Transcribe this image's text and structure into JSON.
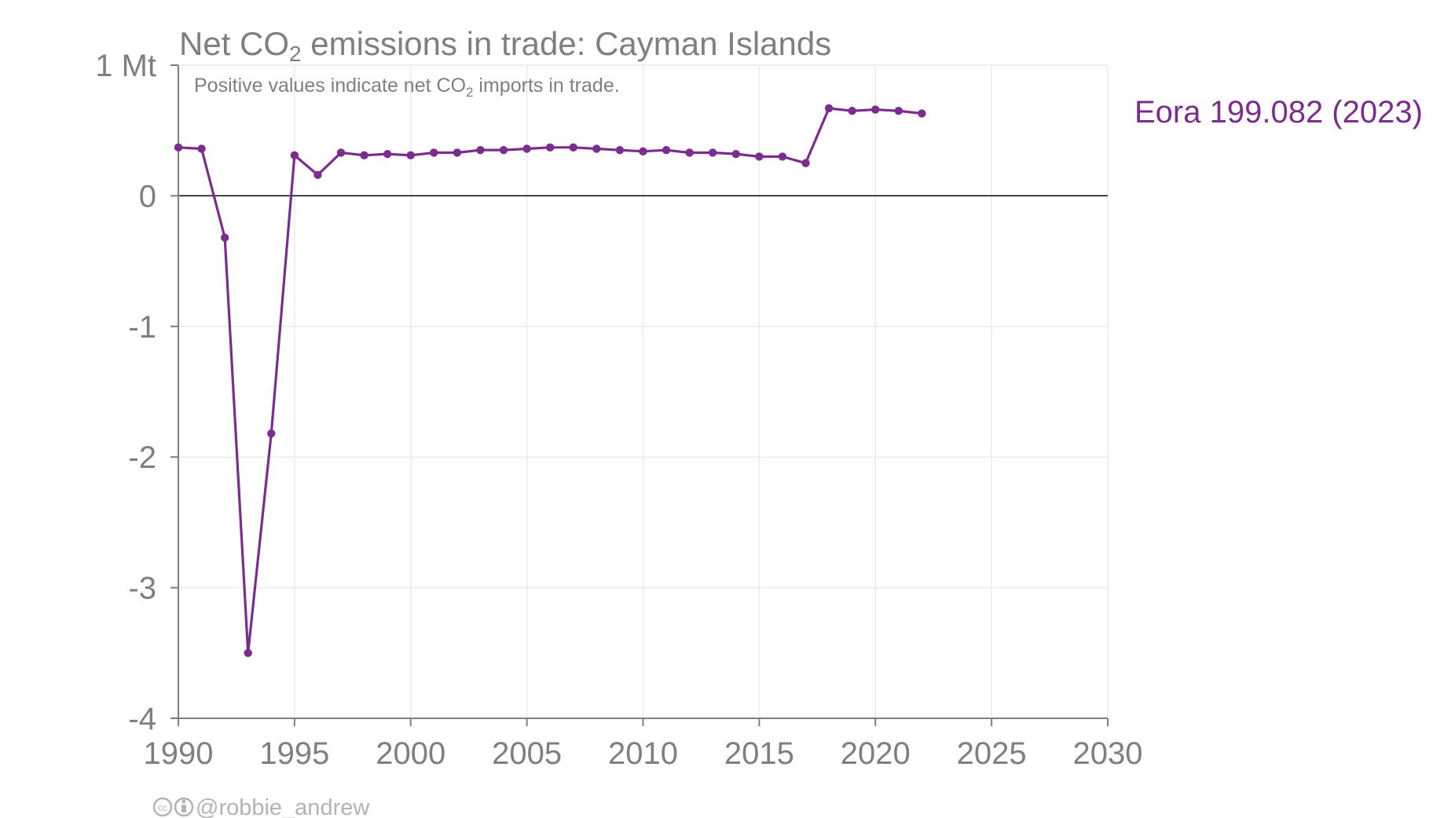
{
  "chart_data": {
    "type": "line",
    "title_prefix": "Net CO",
    "title_sub": "2",
    "title_suffix": " emissions in trade: Cayman Islands",
    "subtitle_prefix": "Positive values indicate net CO",
    "subtitle_sub": "2",
    "subtitle_suffix": " imports in trade.",
    "y_unit_label": "1 Mt",
    "xlim": [
      1990,
      2030
    ],
    "ylim": [
      -4,
      1
    ],
    "x_ticks": [
      "1990",
      "1995",
      "2000",
      "2005",
      "2010",
      "2015",
      "2020",
      "2025",
      "2030"
    ],
    "y_ticks": [
      {
        "value": 1,
        "label": "1 Mt"
      },
      {
        "value": 0,
        "label": "0"
      },
      {
        "value": -1,
        "label": "-1"
      },
      {
        "value": -2,
        "label": "-2"
      },
      {
        "value": -3,
        "label": "-3"
      },
      {
        "value": -4,
        "label": "-4"
      }
    ],
    "grid": true,
    "series": [
      {
        "name": "Eora",
        "end_label": "Eora 199.082 (2023)",
        "color": "#7b2d8e",
        "x": [
          1990,
          1991,
          1992,
          1993,
          1994,
          1995,
          1996,
          1997,
          1998,
          1999,
          2000,
          2001,
          2002,
          2003,
          2004,
          2005,
          2006,
          2007,
          2008,
          2009,
          2010,
          2011,
          2012,
          2013,
          2014,
          2015,
          2016,
          2017,
          2018,
          2019,
          2020,
          2021,
          2022
        ],
        "y": [
          0.37,
          0.36,
          -0.32,
          -3.5,
          -1.82,
          0.31,
          0.16,
          0.33,
          0.31,
          0.32,
          0.31,
          0.33,
          0.33,
          0.35,
          0.35,
          0.36,
          0.37,
          0.37,
          0.36,
          0.35,
          0.34,
          0.35,
          0.33,
          0.33,
          0.32,
          0.3,
          0.3,
          0.25,
          0.67,
          0.65,
          0.66,
          0.65,
          0.63
        ]
      }
    ]
  },
  "credit": {
    "handle": "@robbie_andrew",
    "icons": [
      "cc-icon",
      "attribution-icon"
    ]
  }
}
